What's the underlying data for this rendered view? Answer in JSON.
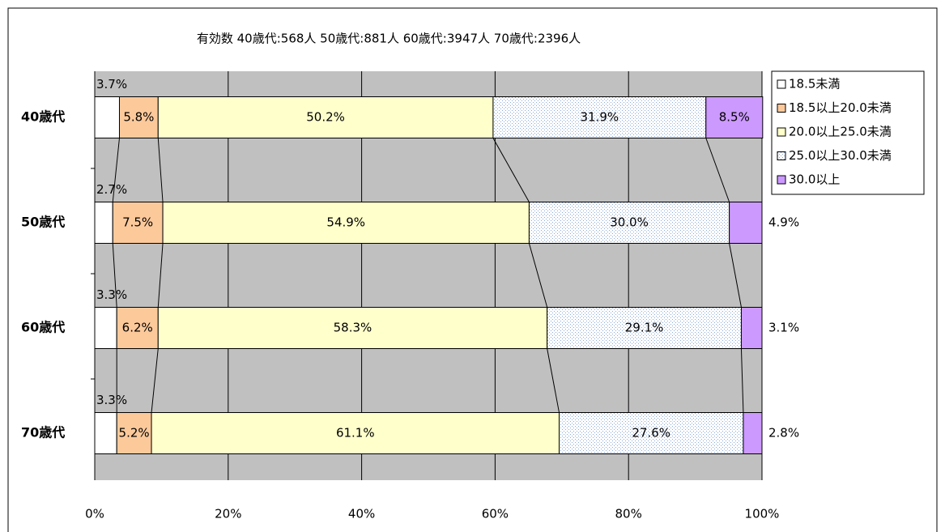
{
  "chart_data": {
    "type": "stacked-bar-100",
    "title": "有効数  40歳代:568人  50歳代:881人  60歳代:3947人  70歳代:2396人",
    "categories": [
      "40歳代",
      "50歳代",
      "60歳代",
      "70歳代"
    ],
    "series": [
      {
        "name": "18.5未満",
        "color": "#ffffff",
        "values": [
          3.7,
          2.7,
          3.3,
          3.3
        ],
        "value_labels": [
          "3.7%",
          "2.7%",
          "3.3%",
          "3.3%"
        ]
      },
      {
        "name": "18.5以上20.0未満",
        "color": "#fcc99b",
        "values": [
          5.8,
          7.5,
          6.2,
          5.2
        ],
        "value_labels": [
          "5.8%",
          "7.5%",
          "6.2%",
          "5.2%"
        ]
      },
      {
        "name": "20.0以上25.0未満",
        "color": "#ffffcc",
        "values": [
          50.2,
          54.9,
          58.3,
          61.1
        ],
        "value_labels": [
          "50.2%",
          "54.9%",
          "58.3%",
          "61.1%"
        ]
      },
      {
        "name": "25.0以上30.0未満",
        "color": "#e4ecf8",
        "pattern": "dots",
        "values": [
          31.9,
          30.0,
          29.1,
          27.6
        ],
        "value_labels": [
          "31.9%",
          "30.0%",
          "29.1%",
          "27.6%"
        ]
      },
      {
        "name": "30.0以上",
        "color": "#cc99ff",
        "values": [
          8.5,
          4.9,
          3.1,
          2.8
        ],
        "value_labels": [
          "8.5%",
          "4.9%",
          "3.1%",
          "2.8%"
        ]
      }
    ],
    "xlim": [
      0,
      100
    ],
    "xticks": [
      {
        "value": 0,
        "label": "0%"
      },
      {
        "value": 20,
        "label": "20%"
      },
      {
        "value": 40,
        "label": "40%"
      },
      {
        "value": 60,
        "label": "60%"
      },
      {
        "value": 80,
        "label": "80%"
      },
      {
        "value": 100,
        "label": "100%"
      }
    ],
    "grid": true,
    "legend": "right"
  }
}
